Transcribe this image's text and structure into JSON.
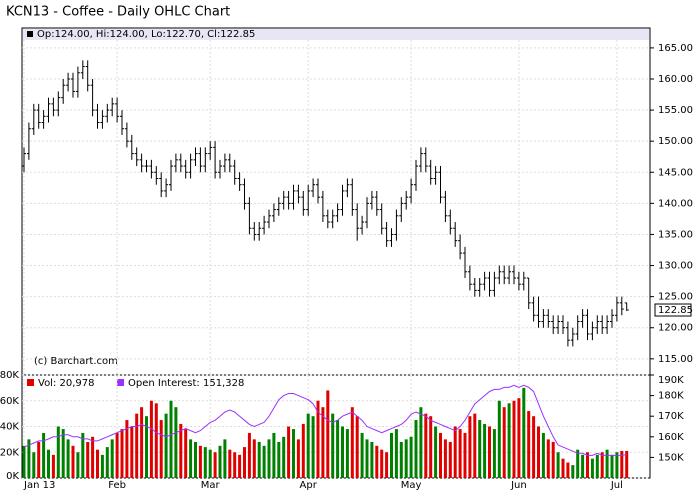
{
  "chart_data": {
    "type": "ohlc",
    "title": "KCN13 - Coffee - Daily OHLC Chart",
    "legend_text": "Op:124.00, Hi:124.00, Lo:122.70, Cl:122.85",
    "credit": "(c) Barchart.com",
    "color": "#000000",
    "grid": true,
    "categories": [
      "Jan 13",
      null,
      null,
      null,
      null,
      null,
      null,
      null,
      null,
      null,
      null,
      null,
      null,
      null,
      null,
      null,
      null,
      null,
      null,
      "Feb",
      null,
      null,
      null,
      null,
      null,
      null,
      null,
      null,
      null,
      null,
      null,
      null,
      null,
      null,
      null,
      null,
      null,
      null,
      "Mar",
      null,
      null,
      null,
      null,
      null,
      null,
      null,
      null,
      null,
      null,
      null,
      null,
      null,
      null,
      null,
      null,
      null,
      null,
      null,
      "Apr",
      null,
      null,
      null,
      null,
      null,
      null,
      null,
      null,
      null,
      null,
      null,
      null,
      null,
      null,
      null,
      null,
      null,
      null,
      null,
      null,
      "May",
      null,
      null,
      null,
      null,
      null,
      null,
      null,
      null,
      null,
      null,
      null,
      null,
      null,
      null,
      null,
      null,
      null,
      null,
      null,
      null,
      null,
      "Jun",
      null,
      null,
      null,
      null,
      null,
      null,
      null,
      null,
      null,
      null,
      null,
      null,
      null,
      null,
      null,
      null,
      null,
      null,
      null,
      "Jul",
      null,
      null
    ],
    "ohlc": [
      [
        146,
        149,
        145,
        148
      ],
      [
        148,
        153,
        147,
        152
      ],
      [
        152,
        156,
        151,
        155
      ],
      [
        155,
        156,
        152,
        153
      ],
      [
        153,
        155,
        152,
        154
      ],
      [
        154,
        157,
        153,
        156
      ],
      [
        156,
        157,
        154,
        155
      ],
      [
        155,
        158,
        154,
        157
      ],
      [
        157,
        160,
        156,
        159
      ],
      [
        159,
        161,
        158,
        160
      ],
      [
        160,
        161,
        157,
        158
      ],
      [
        158,
        162,
        157,
        161
      ],
      [
        161,
        163,
        160,
        162
      ],
      [
        162,
        163,
        158,
        159
      ],
      [
        159,
        160,
        154,
        155
      ],
      [
        155,
        156,
        152,
        153
      ],
      [
        153,
        155,
        152,
        154
      ],
      [
        154,
        156,
        153,
        155
      ],
      [
        155,
        157,
        154,
        156
      ],
      [
        156,
        157,
        153,
        154
      ],
      [
        154,
        155,
        151,
        152
      ],
      [
        152,
        153,
        149,
        150
      ],
      [
        150,
        151,
        147,
        148
      ],
      [
        148,
        149,
        146,
        147
      ],
      [
        147,
        148,
        145,
        146
      ],
      [
        146,
        147,
        145,
        146
      ],
      [
        146,
        147,
        144,
        145
      ],
      [
        145,
        146,
        143,
        144
      ],
      [
        144,
        145,
        141,
        142
      ],
      [
        142,
        144,
        141,
        143
      ],
      [
        143,
        147,
        142,
        146
      ],
      [
        146,
        148,
        145,
        147
      ],
      [
        147,
        148,
        145,
        146
      ],
      [
        146,
        147,
        144,
        145
      ],
      [
        145,
        148,
        144,
        147
      ],
      [
        147,
        149,
        146,
        148
      ],
      [
        148,
        149,
        145,
        146
      ],
      [
        146,
        149,
        145,
        148
      ],
      [
        148,
        150,
        147,
        149
      ],
      [
        149,
        150,
        144,
        145
      ],
      [
        145,
        147,
        144,
        146
      ],
      [
        146,
        148,
        145,
        147
      ],
      [
        147,
        148,
        145,
        146
      ],
      [
        146,
        147,
        143,
        144
      ],
      [
        144,
        145,
        142,
        143
      ],
      [
        143,
        144,
        139,
        140
      ],
      [
        140,
        141,
        135,
        136
      ],
      [
        136,
        137,
        134,
        135
      ],
      [
        135,
        137,
        134,
        136
      ],
      [
        136,
        138,
        135,
        137
      ],
      [
        137,
        139,
        136,
        138
      ],
      [
        138,
        140,
        137,
        139
      ],
      [
        139,
        141,
        138,
        140
      ],
      [
        140,
        142,
        139,
        141
      ],
      [
        141,
        142,
        139,
        140
      ],
      [
        140,
        143,
        139,
        142
      ],
      [
        142,
        143,
        140,
        141
      ],
      [
        141,
        142,
        138,
        139
      ],
      [
        139,
        143,
        138,
        142
      ],
      [
        142,
        144,
        141,
        143
      ],
      [
        143,
        144,
        140,
        141
      ],
      [
        141,
        142,
        137,
        138
      ],
      [
        138,
        139,
        136,
        137
      ],
      [
        137,
        139,
        136,
        138
      ],
      [
        138,
        140,
        137,
        139
      ],
      [
        139,
        143,
        138,
        142
      ],
      [
        142,
        144,
        141,
        143
      ],
      [
        143,
        144,
        138,
        139
      ],
      [
        139,
        140,
        134,
        136
      ],
      [
        136,
        138,
        135,
        137
      ],
      [
        137,
        141,
        136,
        140
      ],
      [
        140,
        142,
        139,
        141
      ],
      [
        141,
        142,
        138,
        139
      ],
      [
        139,
        140,
        135,
        136
      ],
      [
        136,
        137,
        133,
        134
      ],
      [
        134,
        136,
        133,
        135
      ],
      [
        135,
        139,
        134,
        138
      ],
      [
        138,
        141,
        137,
        140
      ],
      [
        140,
        142,
        139,
        141
      ],
      [
        141,
        144,
        140,
        143
      ],
      [
        143,
        147,
        142,
        146
      ],
      [
        146,
        149,
        145,
        148
      ],
      [
        148,
        149,
        145,
        146
      ],
      [
        146,
        147,
        143,
        144
      ],
      [
        144,
        146,
        143,
        145
      ],
      [
        145,
        146,
        140,
        141
      ],
      [
        141,
        142,
        137,
        138
      ],
      [
        138,
        139,
        135,
        136
      ],
      [
        136,
        137,
        133,
        134
      ],
      [
        134,
        135,
        131,
        132
      ],
      [
        132,
        133,
        128,
        129
      ],
      [
        129,
        130,
        126,
        127
      ],
      [
        127,
        128,
        125,
        126
      ],
      [
        126,
        128,
        125,
        127
      ],
      [
        127,
        129,
        126,
        128
      ],
      [
        128,
        129,
        125,
        126
      ],
      [
        126,
        129,
        125,
        128
      ],
      [
        128,
        130,
        127,
        129
      ],
      [
        129,
        130,
        127,
        128
      ],
      [
        128,
        130,
        127,
        129
      ],
      [
        129,
        130,
        127,
        128
      ],
      [
        128,
        129,
        126,
        127
      ],
      [
        127,
        129,
        126,
        128
      ],
      [
        128,
        128,
        123,
        124
      ],
      [
        124,
        125,
        121,
        122
      ],
      [
        122,
        125,
        120,
        121
      ],
      [
        121,
        123,
        120,
        122
      ],
      [
        122,
        123,
        120,
        121
      ],
      [
        121,
        122,
        119,
        120
      ],
      [
        120,
        122,
        119,
        121
      ],
      [
        121,
        122,
        119,
        120
      ],
      [
        120,
        121,
        117,
        118
      ],
      [
        118,
        120,
        117,
        119
      ],
      [
        119,
        122,
        118,
        121
      ],
      [
        121,
        123,
        120,
        122
      ],
      [
        122,
        123,
        118,
        119
      ],
      [
        119,
        121,
        118,
        120
      ],
      [
        120,
        122,
        119,
        121
      ],
      [
        121,
        122,
        119,
        120
      ],
      [
        120,
        122,
        119,
        121
      ],
      [
        121,
        123,
        120,
        122
      ],
      [
        122,
        125,
        121,
        124
      ],
      [
        124,
        125,
        122,
        123
      ],
      [
        124,
        124,
        122.7,
        122.85
      ]
    ],
    "ylim": [
      112.4,
      168.2
    ],
    "yticks": [
      {
        "value": 115,
        "label": "115.00"
      },
      {
        "value": 120,
        "label": "120.00"
      },
      {
        "value": 125,
        "label": "125.00"
      },
      {
        "value": 130,
        "label": "130.00"
      },
      {
        "value": 135,
        "label": "135.00"
      },
      {
        "value": 140,
        "label": "140.00"
      },
      {
        "value": 145,
        "label": "145.00"
      },
      {
        "value": 150,
        "label": "150.00"
      },
      {
        "value": 155,
        "label": "155.00"
      },
      {
        "value": 160,
        "label": "160.00"
      },
      {
        "value": 165,
        "label": "165.00"
      }
    ],
    "volume": {
      "name": "Vol: 20,978",
      "up_color": "#008000",
      "down_color": "#e00000",
      "values": [
        25000,
        30000,
        20000,
        28000,
        35000,
        22000,
        18000,
        40000,
        38000,
        30000,
        25000,
        20000,
        35000,
        28000,
        32000,
        22000,
        18000,
        24000,
        30000,
        35000,
        38000,
        45000,
        40000,
        50000,
        55000,
        48000,
        60000,
        58000,
        45000,
        50000,
        60000,
        55000,
        42000,
        38000,
        30000,
        28000,
        25000,
        24000,
        22000,
        20000,
        25000,
        30000,
        22000,
        20000,
        18000,
        24000,
        35000,
        30000,
        28000,
        25000,
        30000,
        35000,
        28000,
        32000,
        40000,
        38000,
        30000,
        42000,
        50000,
        48000,
        60000,
        55000,
        68000,
        50000,
        45000,
        40000,
        38000,
        55000,
        48000,
        35000,
        30000,
        28000,
        25000,
        22000,
        20000,
        35000,
        38000,
        28000,
        30000,
        32000,
        45000,
        55000,
        50000,
        48000,
        40000,
        35000,
        30000,
        28000,
        40000,
        38000,
        35000,
        48000,
        50000,
        45000,
        42000,
        40000,
        38000,
        60000,
        55000,
        58000,
        60000,
        62000,
        70000,
        52000,
        48000,
        40000,
        35000,
        30000,
        28000,
        20000,
        15000,
        12000,
        10000,
        22000,
        18000,
        20000,
        15000,
        18000,
        20000,
        22000,
        18000,
        20000,
        21000,
        20978
      ],
      "ylim": [
        0,
        80000
      ],
      "yticks": [
        {
          "value": 0,
          "label": "0K"
        },
        {
          "value": 20000,
          "label": "20K"
        },
        {
          "value": 40000,
          "label": "40K"
        },
        {
          "value": 60000,
          "label": "60K"
        },
        {
          "value": 80000,
          "label": "80K"
        }
      ]
    },
    "open_interest": {
      "name": "Open Interest: 151,328",
      "color": "#9933ff",
      "values": [
        155000,
        156000,
        157000,
        158000,
        158000,
        159000,
        160000,
        160000,
        161000,
        161000,
        160000,
        160000,
        159000,
        159000,
        158000,
        158000,
        159000,
        160000,
        161000,
        162000,
        163000,
        164000,
        165000,
        165000,
        166000,
        165000,
        164000,
        162000,
        161000,
        160000,
        161000,
        162000,
        163000,
        164000,
        163000,
        162000,
        163000,
        165000,
        167000,
        168000,
        170000,
        172000,
        173000,
        172000,
        170000,
        168000,
        166000,
        165000,
        166000,
        167000,
        170000,
        174000,
        178000,
        180000,
        181000,
        181000,
        180000,
        179000,
        178000,
        176000,
        172000,
        170000,
        168000,
        167000,
        168000,
        170000,
        171000,
        172000,
        170000,
        168000,
        165000,
        164000,
        163000,
        162000,
        163000,
        164000,
        165000,
        166000,
        168000,
        171000,
        172000,
        171000,
        170000,
        168000,
        167000,
        166000,
        165000,
        164000,
        163000,
        165000,
        168000,
        172000,
        176000,
        178000,
        180000,
        182000,
        183000,
        183000,
        184000,
        184000,
        185000,
        184000,
        185000,
        184000,
        182000,
        176000,
        170000,
        165000,
        160000,
        156000,
        155000,
        154000,
        153000,
        152000,
        152000,
        151000,
        151000,
        152000,
        151000,
        151000,
        151000,
        151000,
        151000,
        151328
      ],
      "ylim": [
        140000,
        190000
      ],
      "yticks": [
        {
          "value": 150000,
          "label": "150K"
        },
        {
          "value": 160000,
          "label": "160K"
        },
        {
          "value": 170000,
          "label": "170K"
        },
        {
          "value": 180000,
          "label": "180K"
        },
        {
          "value": 190000,
          "label": "190K"
        }
      ]
    }
  }
}
